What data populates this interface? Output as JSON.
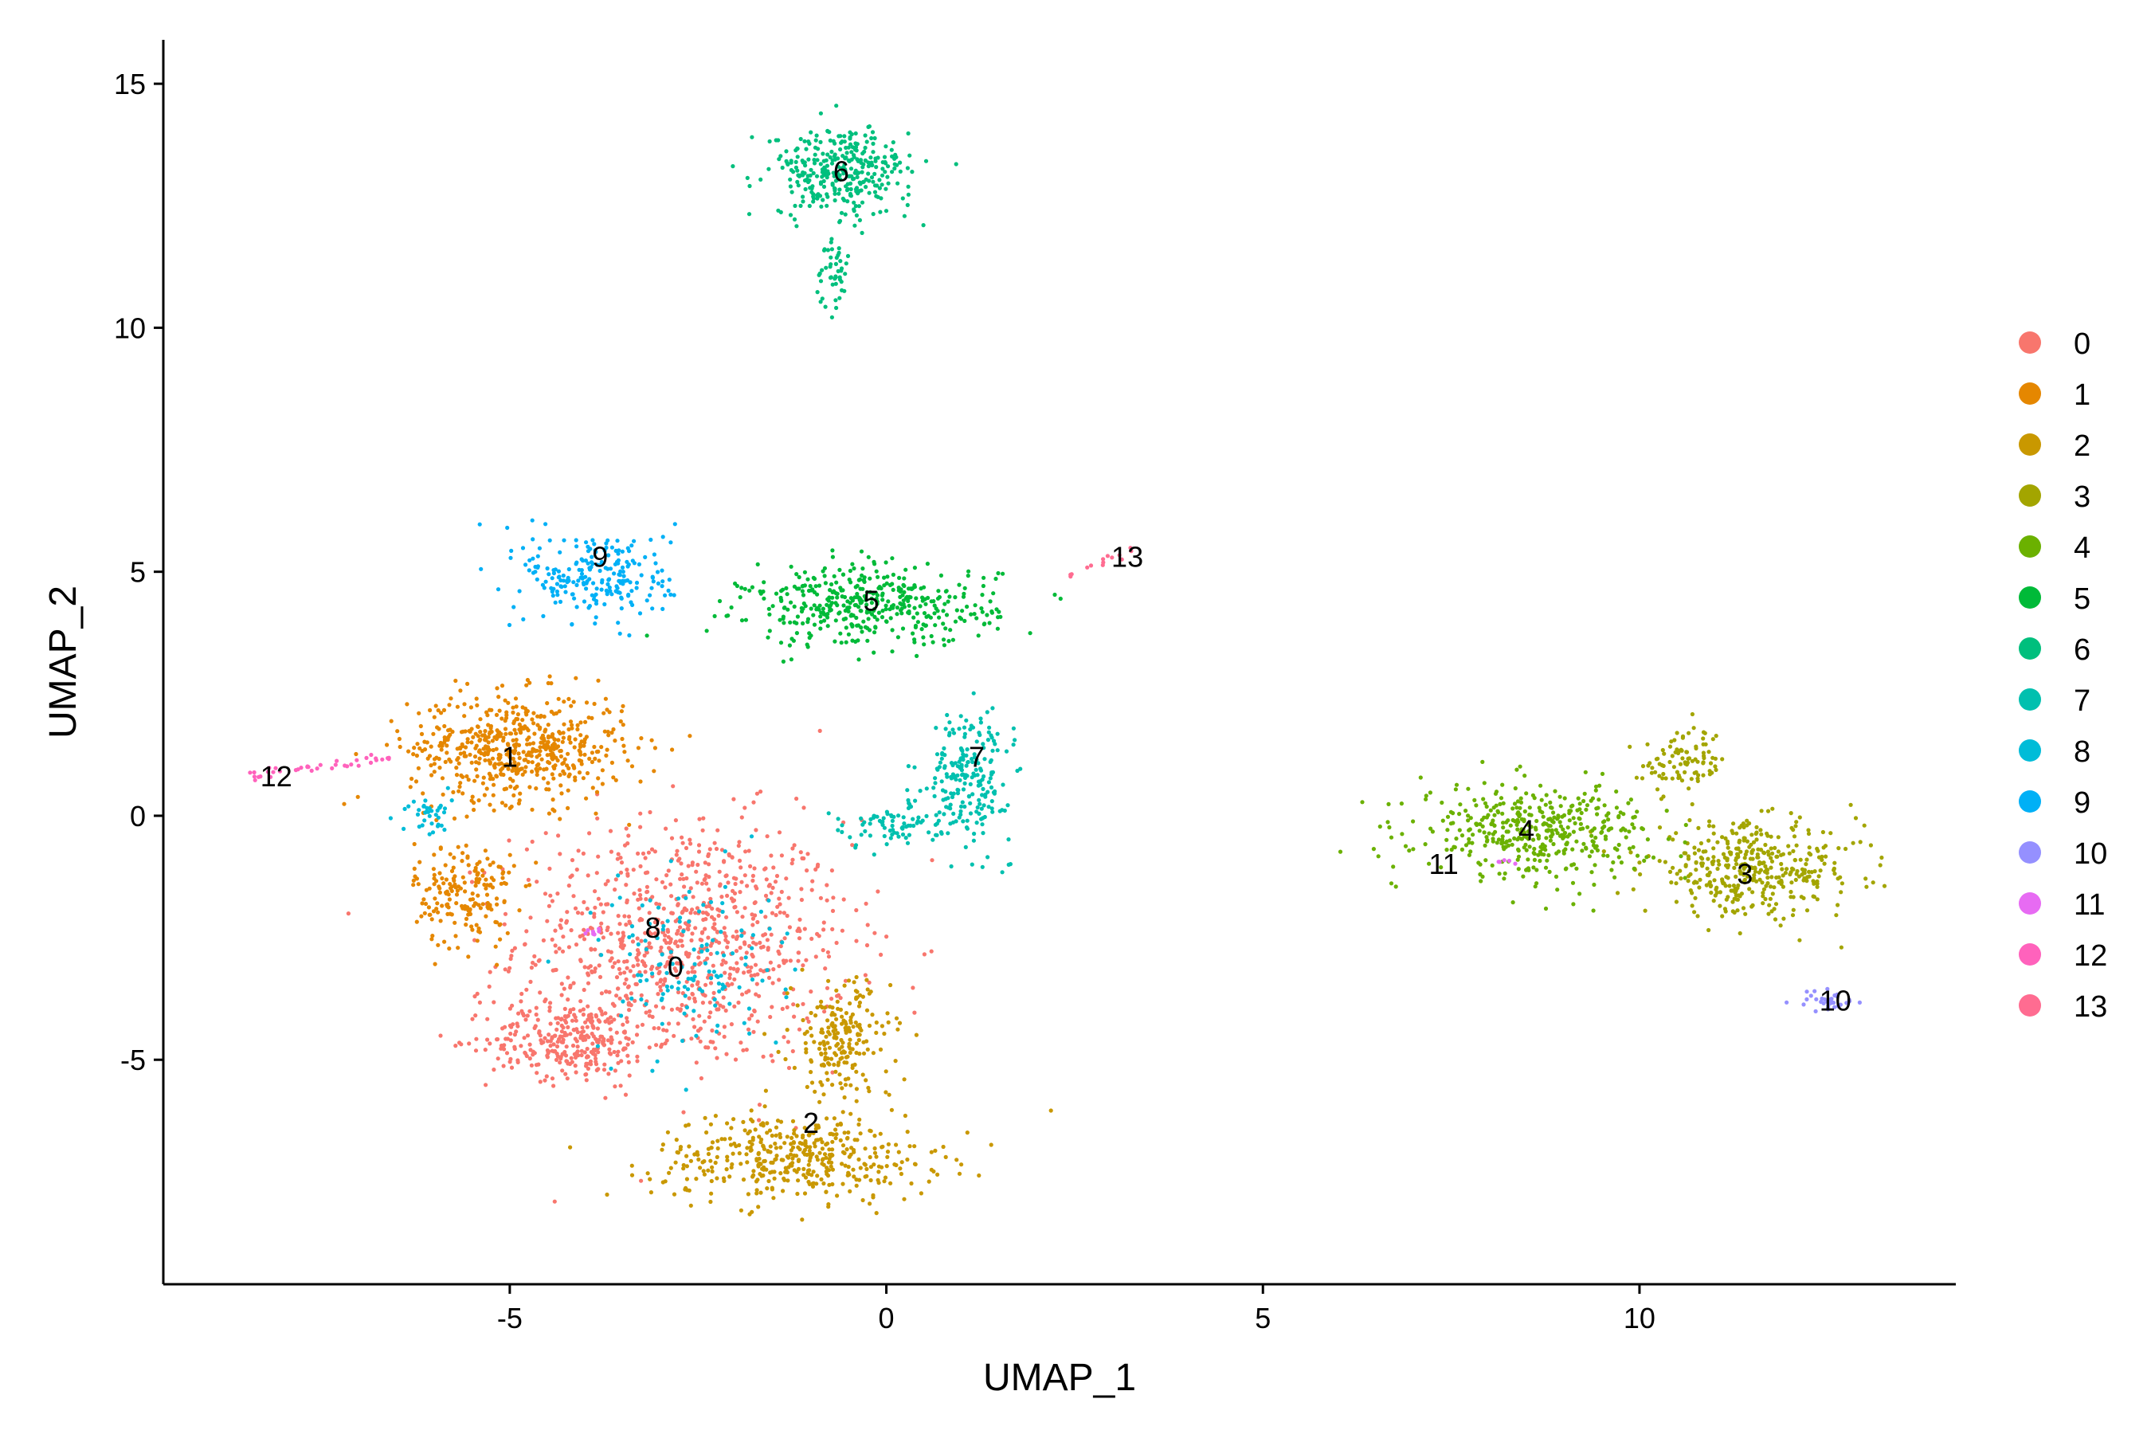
{
  "chart_data": {
    "type": "scatter",
    "title": "",
    "xlabel": "UMAP_1",
    "ylabel": "UMAP_2",
    "xlim": [
      -9.6,
      14.2
    ],
    "ylim": [
      -9.6,
      15.9
    ],
    "x_ticks": [
      -5,
      0,
      5,
      10
    ],
    "y_ticks": [
      -5,
      0,
      5,
      10,
      15
    ],
    "x_tick_labels": [
      "-5",
      "0",
      "5",
      "10"
    ],
    "y_tick_labels": [
      "-5",
      "0",
      "5",
      "10",
      "15"
    ],
    "grid": false,
    "legend_position": "right",
    "point_count_per_unit": 95,
    "clusters": [
      {
        "name": "0",
        "color": "#F8766D",
        "label_x": -2.8,
        "label_y": -3.1,
        "regions": [
          {
            "cx": -2.7,
            "cy": -2.6,
            "sx": 2.0,
            "sy": 2.3,
            "w": 9.5
          },
          {
            "cx": -4.2,
            "cy": -4.6,
            "sx": 1.0,
            "sy": 0.7,
            "w": 3
          }
        ]
      },
      {
        "name": "1",
        "color": "#E58700",
        "label_x": -5.0,
        "label_y": 1.2,
        "regions": [
          {
            "cx": -4.9,
            "cy": 1.4,
            "sx": 1.3,
            "sy": 1.0,
            "w": 6
          },
          {
            "cx": -5.6,
            "cy": -1.6,
            "sx": 0.6,
            "sy": 1.0,
            "w": 2
          }
        ]
      },
      {
        "name": "2",
        "color": "#C99800",
        "label_x": -1.0,
        "label_y": -6.3,
        "regions": [
          {
            "cx": -1.2,
            "cy": -7.0,
            "sx": 1.7,
            "sy": 0.8,
            "w": 4.5
          },
          {
            "cx": -0.6,
            "cy": -4.6,
            "sx": 0.6,
            "sy": 1.1,
            "w": 2.2
          }
        ]
      },
      {
        "name": "3",
        "color": "#A3A500",
        "label_x": 11.4,
        "label_y": -1.2,
        "regions": [
          {
            "cx": 11.5,
            "cy": -1.1,
            "sx": 1.3,
            "sy": 0.85,
            "w": 4.2
          },
          {
            "cx": 10.6,
            "cy": 1.1,
            "sx": 0.5,
            "sy": 0.6,
            "w": 1
          }
        ]
      },
      {
        "name": "4",
        "color": "#6BB100",
        "label_x": 8.5,
        "label_y": -0.3,
        "regions": [
          {
            "cx": 8.6,
            "cy": -0.3,
            "sx": 1.4,
            "sy": 0.85,
            "w": 4.5
          }
        ]
      },
      {
        "name": "5",
        "color": "#00BA38",
        "label_x": -0.2,
        "label_y": 4.4,
        "regions": [
          {
            "cx": -0.2,
            "cy": 4.3,
            "sx": 1.5,
            "sy": 0.75,
            "w": 4.5
          }
        ]
      },
      {
        "name": "6",
        "color": "#00BF7D",
        "label_x": -0.6,
        "label_y": 13.2,
        "regions": [
          {
            "cx": -0.6,
            "cy": 13.2,
            "sx": 0.85,
            "sy": 0.8,
            "w": 3.5
          },
          {
            "cx": -0.7,
            "cy": 11.2,
            "sx": 0.2,
            "sy": 0.7,
            "w": 0.5
          }
        ]
      },
      {
        "name": "7",
        "color": "#00C0AF",
        "label_x": 1.2,
        "label_y": 1.2,
        "regions": [
          {
            "cx": 1.1,
            "cy": 0.8,
            "sx": 0.5,
            "sy": 1.2,
            "w": 2.3
          },
          {
            "cx": 0.0,
            "cy": -0.2,
            "sx": 0.7,
            "sy": 0.4,
            "w": 0.8
          }
        ]
      },
      {
        "name": "8",
        "color": "#00BCD8",
        "label_x": -3.1,
        "label_y": -2.3,
        "regions": [
          {
            "cx": -2.6,
            "cy": -3.0,
            "sx": 1.1,
            "sy": 1.7,
            "w": 1.4
          },
          {
            "cx": -6.1,
            "cy": 0.0,
            "sx": 0.3,
            "sy": 0.4,
            "w": 0.4
          }
        ]
      },
      {
        "name": "9",
        "color": "#00B0F6",
        "label_x": -3.8,
        "label_y": 5.3,
        "regions": [
          {
            "cx": -3.8,
            "cy": 4.9,
            "sx": 0.9,
            "sy": 0.9,
            "w": 2.4
          }
        ]
      },
      {
        "name": "10",
        "color": "#9590FF",
        "label_x": 12.6,
        "label_y": -3.8,
        "regions": [
          {
            "cx": 12.5,
            "cy": -3.8,
            "sx": 0.35,
            "sy": 0.2,
            "w": 0.35
          }
        ]
      },
      {
        "name": "11",
        "color": "#E76BF3",
        "label_x": 7.4,
        "label_y": -1.0,
        "regions": [
          {
            "cx": -3.9,
            "cy": -2.4,
            "sx": 0.12,
            "sy": 0.12,
            "w": 0.08
          },
          {
            "cx": 8.2,
            "cy": -0.9,
            "sx": 0.15,
            "sy": 0.1,
            "w": 0.05
          }
        ]
      },
      {
        "name": "12",
        "color": "#FF62BC",
        "label_x": -8.1,
        "label_y": 0.8,
        "regions": [
          {
            "type": "line",
            "x0": -8.6,
            "y0": 0.8,
            "x1": -6.5,
            "y1": 1.2,
            "w": 0.4
          }
        ]
      },
      {
        "name": "13",
        "color": "#FF6C91",
        "label_x": 3.2,
        "label_y": 5.3,
        "regions": [
          {
            "type": "line",
            "x0": 2.4,
            "y0": 4.9,
            "x1": 3.3,
            "y1": 5.5,
            "w": 0.15
          }
        ]
      }
    ]
  }
}
